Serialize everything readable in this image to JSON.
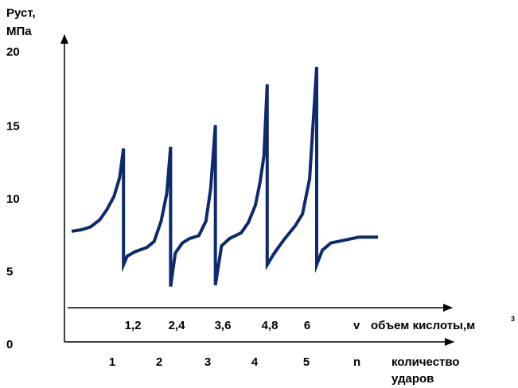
{
  "chart_data": {
    "type": "line",
    "ylabel_line1": "Руст,",
    "ylabel_line2": "МПа",
    "ylim": [
      0,
      20
    ],
    "yticks": [
      "20",
      "15",
      "10",
      "5",
      "0"
    ],
    "volume_axis": {
      "symbol": "v",
      "label": "объем кислоты,м",
      "unit_superscript": "3",
      "ticks": [
        "1,2",
        "2,4",
        "3,6",
        "4,8",
        "6"
      ]
    },
    "impact_axis": {
      "symbol": "n",
      "label_line1": "количество",
      "label_line2": "ударов",
      "ticks": [
        "1",
        "2",
        "3",
        "4",
        "5"
      ]
    },
    "series": [
      {
        "color": "#0d2a6e",
        "points": [
          [
            0.1,
            7.6
          ],
          [
            0.3,
            7.7
          ],
          [
            0.5,
            7.9
          ],
          [
            0.7,
            8.4
          ],
          [
            0.85,
            9.1
          ],
          [
            1.0,
            10.0
          ],
          [
            1.12,
            11.3
          ],
          [
            1.2,
            13.3
          ],
          [
            1.2,
            5.3
          ],
          [
            1.28,
            5.9
          ],
          [
            1.45,
            6.2
          ],
          [
            1.7,
            6.5
          ],
          [
            1.85,
            6.9
          ],
          [
            2.0,
            8.3
          ],
          [
            2.12,
            10.2
          ],
          [
            2.2,
            13.4
          ],
          [
            2.2,
            3.8
          ],
          [
            2.3,
            6.1
          ],
          [
            2.45,
            6.8
          ],
          [
            2.6,
            7.1
          ],
          [
            2.8,
            7.3
          ],
          [
            2.95,
            8.3
          ],
          [
            3.05,
            10.5
          ],
          [
            3.15,
            14.9
          ],
          [
            3.15,
            3.9
          ],
          [
            3.28,
            6.6
          ],
          [
            3.45,
            7.1
          ],
          [
            3.7,
            7.5
          ],
          [
            3.85,
            8.2
          ],
          [
            4.0,
            9.4
          ],
          [
            4.1,
            11.0
          ],
          [
            4.18,
            12.8
          ],
          [
            4.25,
            17.7
          ],
          [
            4.25,
            5.3
          ],
          [
            4.4,
            6.1
          ],
          [
            4.6,
            7.0
          ],
          [
            4.85,
            8.0
          ],
          [
            5.0,
            8.8
          ],
          [
            5.15,
            11.2
          ],
          [
            5.3,
            18.9
          ],
          [
            5.3,
            5.3
          ],
          [
            5.42,
            6.3
          ],
          [
            5.6,
            6.8
          ],
          [
            5.9,
            7.0
          ],
          [
            6.2,
            7.2
          ],
          [
            6.4,
            7.2
          ],
          [
            6.6,
            7.2
          ]
        ]
      }
    ]
  }
}
